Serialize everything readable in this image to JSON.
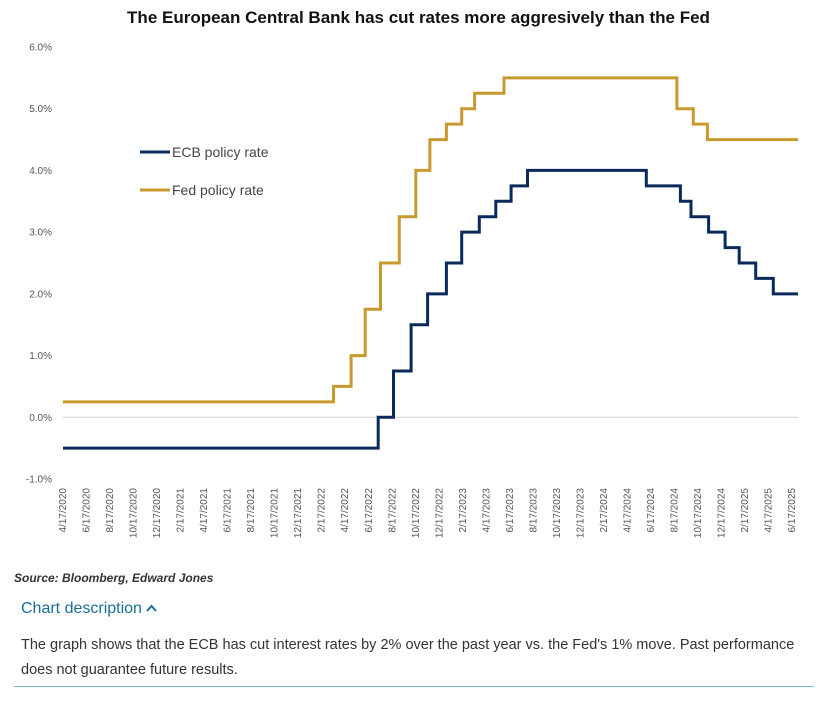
{
  "chart_data": {
    "type": "line",
    "title": "The European Central Bank has cut rates more aggresively than the Fed",
    "xlabel": "",
    "ylabel": "",
    "ylim": [
      -1.0,
      6.0
    ],
    "yticks": [
      "-1.0%",
      "0.0%",
      "1.0%",
      "2.0%",
      "3.0%",
      "4.0%",
      "5.0%",
      "6.0%"
    ],
    "ytick_values": [
      -1,
      0,
      1,
      2,
      3,
      4,
      5,
      6
    ],
    "xticks": [
      "4/17/2020",
      "6/17/2020",
      "8/17/2020",
      "10/17/2020",
      "12/17/2020",
      "2/17/2021",
      "4/17/2021",
      "6/17/2021",
      "8/17/2021",
      "10/17/2021",
      "12/17/2021",
      "2/17/2022",
      "4/17/2022",
      "6/17/2022",
      "8/17/2022",
      "10/17/2022",
      "12/17/2022",
      "2/17/2023",
      "4/17/2023",
      "6/17/2023",
      "8/17/2023",
      "10/17/2023",
      "12/17/2023",
      "2/17/2024",
      "4/17/2024",
      "6/17/2024",
      "8/17/2024",
      "10/17/2024",
      "12/17/2024",
      "2/17/2025",
      "4/17/2025",
      "6/17/2025"
    ],
    "grid": false,
    "legend_position": "upper-left",
    "series": [
      {
        "name": "ECB policy rate",
        "color": "#0a2a5c",
        "steps": [
          {
            "month": 0,
            "value": -0.5
          },
          {
            "month": 26.8,
            "value": 0.0
          },
          {
            "month": 28.1,
            "value": 0.75
          },
          {
            "month": 29.6,
            "value": 1.5
          },
          {
            "month": 31.0,
            "value": 2.0
          },
          {
            "month": 32.6,
            "value": 2.5
          },
          {
            "month": 33.9,
            "value": 3.0
          },
          {
            "month": 35.4,
            "value": 3.25
          },
          {
            "month": 36.8,
            "value": 3.5
          },
          {
            "month": 38.1,
            "value": 3.75
          },
          {
            "month": 39.5,
            "value": 4.0
          },
          {
            "month": 49.6,
            "value": 3.75
          },
          {
            "month": 52.5,
            "value": 3.5
          },
          {
            "month": 53.4,
            "value": 3.25
          },
          {
            "month": 54.9,
            "value": 3.0
          },
          {
            "month": 56.3,
            "value": 2.75
          },
          {
            "month": 57.5,
            "value": 2.5
          },
          {
            "month": 58.9,
            "value": 2.25
          },
          {
            "month": 60.4,
            "value": 2.0
          },
          {
            "month": 62.5,
            "value": 2.0
          }
        ]
      },
      {
        "name": "Fed policy rate",
        "color": "#c89a2e",
        "steps": [
          {
            "month": 0,
            "value": 0.25
          },
          {
            "month": 23.0,
            "value": 0.5
          },
          {
            "month": 24.5,
            "value": 1.0
          },
          {
            "month": 25.7,
            "value": 1.75
          },
          {
            "month": 27.0,
            "value": 2.5
          },
          {
            "month": 28.6,
            "value": 3.25
          },
          {
            "month": 30.0,
            "value": 4.0
          },
          {
            "month": 31.2,
            "value": 4.5
          },
          {
            "month": 32.6,
            "value": 4.75
          },
          {
            "month": 33.9,
            "value": 5.0
          },
          {
            "month": 35.0,
            "value": 5.25
          },
          {
            "month": 37.5,
            "value": 5.5
          },
          {
            "month": 52.2,
            "value": 5.0
          },
          {
            "month": 53.6,
            "value": 4.75
          },
          {
            "month": 54.8,
            "value": 4.5
          },
          {
            "month": 62.5,
            "value": 4.5
          }
        ]
      }
    ]
  },
  "source": "Source: Bloomberg, Edward Jones",
  "description": {
    "toggle_label": "Chart description",
    "toggle_icon": "chevron-up-icon",
    "text": "The graph shows that the ECB has cut interest rates by 2% over the past year vs. the Fed's 1% move. Past performance does not guarantee future results."
  }
}
